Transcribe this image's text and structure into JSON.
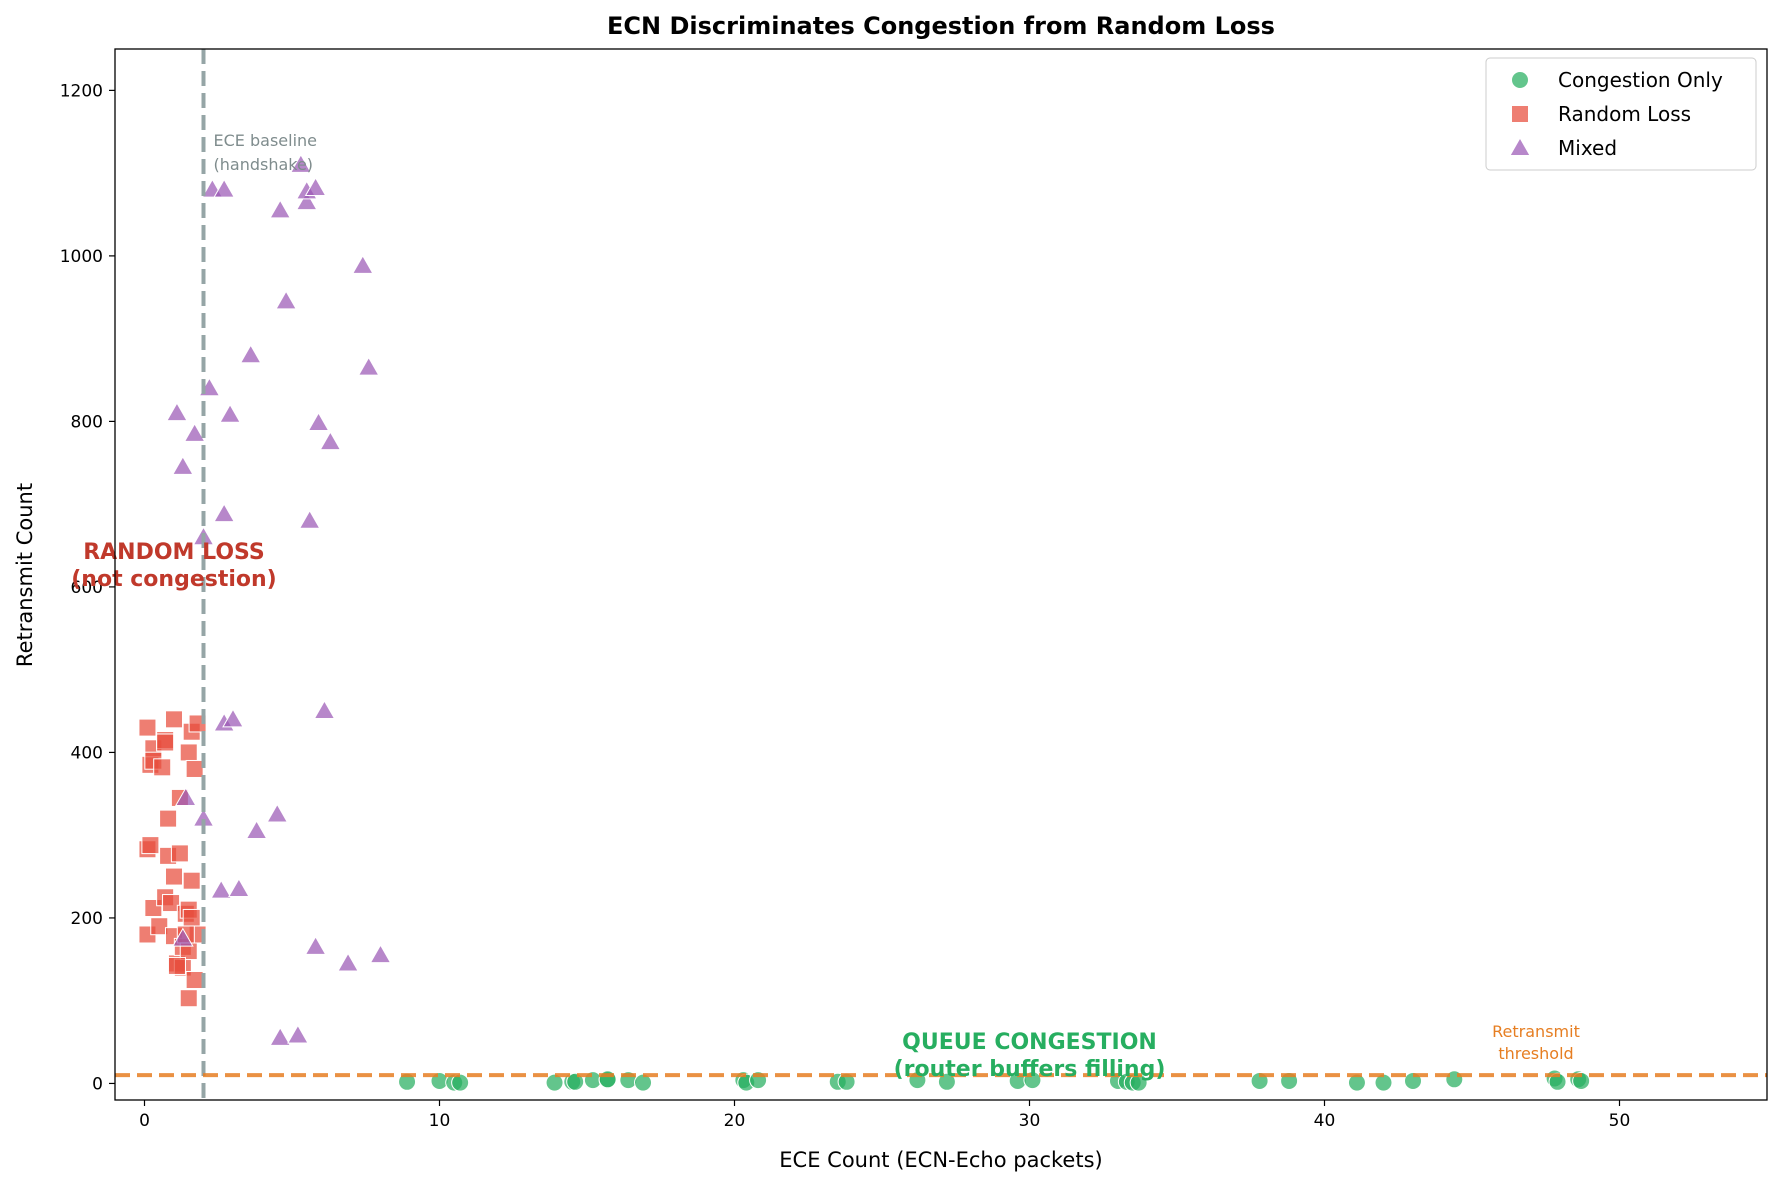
{
  "chart_data": {
    "type": "scatter",
    "title": "ECN Discriminates Congestion from Random Loss",
    "xlabel": "ECE Count (ECN-Echo packets)",
    "ylabel": "Retransmit Count",
    "xlim": [
      -1,
      55
    ],
    "ylim": [
      -20,
      1250
    ],
    "x_ticks": [
      0,
      10,
      20,
      30,
      40,
      50
    ],
    "y_ticks": [
      0,
      200,
      400,
      600,
      800,
      1000,
      1200
    ],
    "grid": false,
    "legend_position": "top-right",
    "series": [
      {
        "name": "Congestion Only",
        "marker": "circle",
        "color": "#27ae60",
        "points": [
          [
            8.9,
            2
          ],
          [
            10.0,
            3
          ],
          [
            10.5,
            1
          ],
          [
            10.7,
            1
          ],
          [
            13.9,
            1
          ],
          [
            14.5,
            2
          ],
          [
            14.6,
            2
          ],
          [
            15.2,
            4
          ],
          [
            15.7,
            4
          ],
          [
            15.7,
            5
          ],
          [
            16.4,
            4
          ],
          [
            16.9,
            1
          ],
          [
            20.3,
            4
          ],
          [
            20.4,
            1
          ],
          [
            20.8,
            4
          ],
          [
            23.5,
            2
          ],
          [
            23.8,
            2
          ],
          [
            26.2,
            4
          ],
          [
            27.2,
            2
          ],
          [
            29.6,
            3
          ],
          [
            30.1,
            4
          ],
          [
            33.0,
            3
          ],
          [
            33.3,
            2
          ],
          [
            33.5,
            1
          ],
          [
            33.7,
            1
          ],
          [
            37.8,
            3
          ],
          [
            38.8,
            3
          ],
          [
            41.1,
            1
          ],
          [
            42.0,
            1
          ],
          [
            43.0,
            3
          ],
          [
            44.4,
            5
          ],
          [
            47.8,
            6
          ],
          [
            47.9,
            2
          ],
          [
            48.6,
            5
          ],
          [
            48.7,
            3
          ]
        ]
      },
      {
        "name": "Random Loss",
        "marker": "square",
        "color": "#e74c3c",
        "points": [
          [
            0.1,
            430
          ],
          [
            0.1,
            283
          ],
          [
            0.1,
            180
          ],
          [
            0.2,
            288
          ],
          [
            0.2,
            385
          ],
          [
            0.3,
            405
          ],
          [
            0.3,
            390
          ],
          [
            0.3,
            212
          ],
          [
            0.5,
            190
          ],
          [
            0.6,
            382
          ],
          [
            0.7,
            415
          ],
          [
            0.7,
            412
          ],
          [
            0.7,
            225
          ],
          [
            0.8,
            320
          ],
          [
            0.8,
            275
          ],
          [
            0.9,
            218
          ],
          [
            1.0,
            440
          ],
          [
            1.0,
            250
          ],
          [
            1.0,
            178
          ],
          [
            1.1,
            145
          ],
          [
            1.2,
            278
          ],
          [
            1.2,
            345
          ],
          [
            1.3,
            165
          ],
          [
            1.3,
            140
          ],
          [
            1.4,
            205
          ],
          [
            1.5,
            400
          ],
          [
            1.5,
            210
          ],
          [
            1.5,
            160
          ],
          [
            1.6,
            425
          ],
          [
            1.6,
            245
          ],
          [
            1.6,
            200
          ],
          [
            1.7,
            380
          ],
          [
            1.7,
            125
          ],
          [
            1.5,
            103
          ],
          [
            1.8,
            435
          ],
          [
            1.8,
            180
          ],
          [
            1.4,
            180
          ],
          [
            1.1,
            142
          ]
        ]
      },
      {
        "name": "Mixed",
        "marker": "triangle",
        "color": "#9b59b6",
        "points": [
          [
            1.1,
            810
          ],
          [
            1.3,
            745
          ],
          [
            1.3,
            175
          ],
          [
            1.4,
            345
          ],
          [
            1.7,
            785
          ],
          [
            2.0,
            320
          ],
          [
            2.0,
            660
          ],
          [
            2.2,
            840
          ],
          [
            2.3,
            1080
          ],
          [
            2.6,
            233
          ],
          [
            2.7,
            435
          ],
          [
            2.7,
            688
          ],
          [
            2.7,
            1080
          ],
          [
            2.9,
            808
          ],
          [
            3.0,
            440
          ],
          [
            3.2,
            235
          ],
          [
            3.6,
            880
          ],
          [
            3.8,
            305
          ],
          [
            4.5,
            325
          ],
          [
            4.6,
            1055
          ],
          [
            4.6,
            55
          ],
          [
            4.8,
            945
          ],
          [
            5.2,
            58
          ],
          [
            5.3,
            1110
          ],
          [
            5.5,
            1065
          ],
          [
            5.5,
            1078
          ],
          [
            5.6,
            680
          ],
          [
            5.8,
            1082
          ],
          [
            5.8,
            165
          ],
          [
            5.9,
            798
          ],
          [
            6.1,
            450
          ],
          [
            6.3,
            775
          ],
          [
            6.9,
            145
          ],
          [
            7.4,
            988
          ],
          [
            7.6,
            865
          ],
          [
            8.0,
            155
          ]
        ]
      }
    ],
    "reference_lines": [
      {
        "orientation": "vertical",
        "value": 2,
        "color": "#95a5a6",
        "label_lines": [
          "ECE baseline",
          "(handshake)"
        ]
      },
      {
        "orientation": "horizontal",
        "value": 10,
        "color": "#e67e22",
        "label_lines": [
          "Retransmit",
          "threshold"
        ]
      }
    ],
    "annotations": [
      {
        "lines": [
          "RANDOM LOSS",
          "(not congestion)"
        ],
        "x": 1.0,
        "y": 620,
        "color": "#c0392b"
      },
      {
        "lines": [
          "QUEUE CONGESTION",
          "(router buffers filling)"
        ],
        "x": 30.0,
        "y": 30,
        "color": "#27ae60"
      }
    ]
  }
}
